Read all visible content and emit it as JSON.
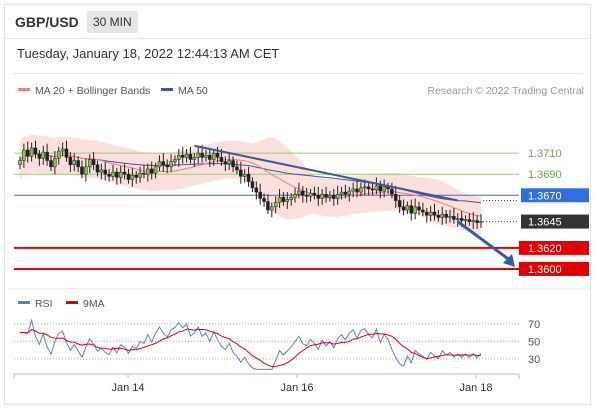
{
  "header": {
    "symbol": "GBP/USD",
    "timeframe": "30 MIN",
    "datetime": "Tuesday, January 18, 2022 12:44:13 AM CET"
  },
  "chart_data": {
    "type": "candlestick",
    "legend": [
      {
        "label": "MA 20 + Bollinger Bands",
        "color": "#f08080"
      },
      {
        "label": "MA 50",
        "color": "#3d5a98"
      }
    ],
    "credit": "Research © 2022 Trading Central",
    "price_axis": {
      "min": 1.358,
      "max": 1.377
    },
    "x_ticks": [
      "Jan 14",
      "Jan 16",
      "Jan 18"
    ],
    "levels": [
      {
        "label": "1.3710",
        "value": 1.371,
        "color": "#9cc77f",
        "kind": "green"
      },
      {
        "label": "1.3690",
        "value": 1.369,
        "color": "#9cc77f",
        "kind": "green"
      },
      {
        "label": "1.3670",
        "value": 1.367,
        "color": "#2f6fe0",
        "kind": "blue"
      },
      {
        "label": "1.3645",
        "value": 1.3645,
        "color": "#333333",
        "kind": "current"
      },
      {
        "label": "1.3620",
        "value": 1.362,
        "color": "#e00000",
        "kind": "red"
      },
      {
        "label": "1.3600",
        "value": 1.36,
        "color": "#e00000",
        "kind": "red"
      }
    ],
    "close_series": [
      1.3703,
      1.3713,
      1.3707,
      1.3715,
      1.3709,
      1.3705,
      1.3711,
      1.3703,
      1.3697,
      1.3705,
      1.3712,
      1.3714,
      1.3706,
      1.3699,
      1.3703,
      1.3697,
      1.369,
      1.3697,
      1.3704,
      1.3699,
      1.3692,
      1.3694,
      1.369,
      1.3688,
      1.3692,
      1.3687,
      1.3692,
      1.369,
      1.3685,
      1.3689,
      1.3687,
      1.3691,
      1.369,
      1.3695,
      1.3691,
      1.3697,
      1.3702,
      1.3699,
      1.3697,
      1.3702,
      1.3704,
      1.3708,
      1.3706,
      1.3709,
      1.3704,
      1.3706,
      1.371,
      1.3706,
      1.3708,
      1.3704,
      1.371,
      1.3706,
      1.3702,
      1.37,
      1.3703,
      1.3697,
      1.3694,
      1.3688,
      1.369,
      1.3683,
      1.3677,
      1.3673,
      1.3667,
      1.3664,
      1.3656,
      1.3659,
      1.3663,
      1.3668,
      1.3664,
      1.3666,
      1.3668,
      1.3671,
      1.3674,
      1.367,
      1.3669,
      1.3672,
      1.367,
      1.3667,
      1.3671,
      1.3668,
      1.367,
      1.3667,
      1.3671,
      1.3673,
      1.3671,
      1.3674,
      1.3676,
      1.3673,
      1.3677,
      1.3678,
      1.3676,
      1.3675,
      1.3679,
      1.3674,
      1.3678,
      1.3676,
      1.3671,
      1.3665,
      1.3659,
      1.3656,
      1.366,
      1.3653,
      1.3659,
      1.3656,
      1.3654,
      1.3651,
      1.3654,
      1.3651,
      1.3649,
      1.3652,
      1.3649,
      1.365,
      1.3647,
      1.3648,
      1.3646,
      1.3647,
      1.3645,
      1.3646,
      1.3644,
      1.3645
    ],
    "rsi": {
      "legend": [
        {
          "label": "RSI",
          "color": "#5b7fd6"
        },
        {
          "label": "9MA",
          "color": "#e00000"
        }
      ],
      "levels": [
        70,
        50,
        30
      ],
      "range": [
        15,
        80
      ]
    },
    "trendline": {
      "from_index": 45,
      "from_price": 1.3717,
      "to_index": 113,
      "to_price": 1.3665
    },
    "forecast_arrow": {
      "from_index": 113,
      "from_price": 1.3645,
      "to_price": 1.36
    }
  }
}
